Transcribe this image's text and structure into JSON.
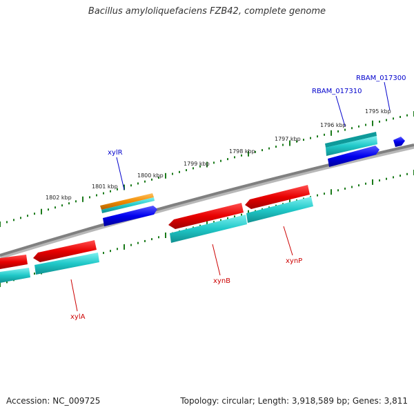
{
  "title": "Bacillus amyloliquefaciens FZB42, complete genome",
  "accession": "Accession: NC_009725",
  "summary": "Topology: circular; Length: 3,918,589 bp; Genes: 3,811",
  "colors": {
    "background": "#ffffff",
    "backbone": "#808080",
    "tick": "#1a7a1a",
    "forward_gene": "#0000ee",
    "reverse_gene": "#ee0000",
    "cds": "#20c8c8",
    "other_feature": "#f08c00"
  },
  "tick_labels": [
    "1795 kbp",
    "1796 kbp",
    "1797 kbp",
    "1798 kbp",
    "1799 kbp",
    "1800 kbp",
    "1801 kbp",
    "1802 kbp"
  ],
  "gene_labels": [
    {
      "text": "RBAM_017300",
      "color": "#0000cc"
    },
    {
      "text": "RBAM_017310",
      "color": "#0000cc"
    },
    {
      "text": "xylR",
      "color": "#0000cc"
    },
    {
      "text": "xynP",
      "color": "#cc0000"
    },
    {
      "text": "xynB",
      "color": "#cc0000"
    },
    {
      "text": "xylA",
      "color": "#cc0000"
    }
  ]
}
